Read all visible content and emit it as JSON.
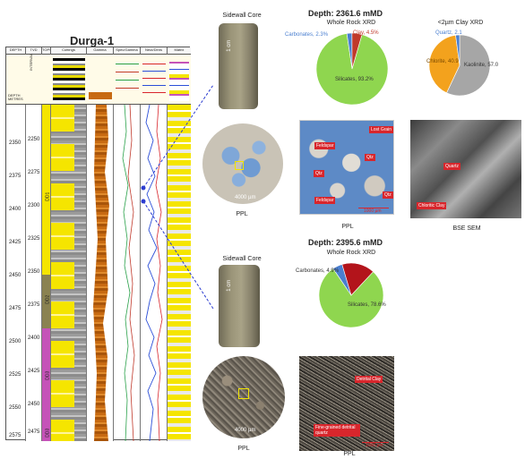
{
  "log": {
    "title": "Durga-1",
    "headers": {
      "depth": "DEPTH",
      "tvd": "TVD",
      "tops": "TOPS",
      "cuttings": "Cuttings",
      "gamma": "Gamma",
      "spectral": "Spec/Gamma",
      "neutron": "Neut/Dens",
      "matrix": "Matrix"
    },
    "depth_unit": "DEPTH METRES",
    "interval_label": "INTERVAL",
    "tvd_ticks": [
      "2250",
      "2275",
      "2300",
      "2325",
      "2350",
      "2375",
      "2400",
      "2425",
      "2450",
      "2475"
    ],
    "md_ticks": [
      "2350",
      "2375",
      "2400",
      "2425",
      "2450",
      "2475",
      "2500",
      "2525",
      "2550",
      "2575"
    ],
    "zones": [
      "DD1",
      "DD2",
      "DD3",
      "DD3"
    ],
    "colors": {
      "yellow": "#f5e500",
      "olive": "#8a8251",
      "magenta": "#c553b8",
      "orange": "#c76a12",
      "blue": "#2b4ed8"
    }
  },
  "sample1": {
    "depth": "Depth: 2361.6 mMD",
    "core_label": "Sidewall Core",
    "core_scale": "1 cm",
    "ppl_scale": "4000 µm",
    "ppl_caption": "PPL",
    "xrd_title": "Whole Rock XRD",
    "xrd": [
      {
        "label": "Silicates, 93.2%",
        "value": 93.2,
        "color": "#8fd64f"
      },
      {
        "label": "Carbonates, 2.3%",
        "value": 2.3,
        "color": "#4a7fd0"
      },
      {
        "label": "Clay, 4.5%",
        "value": 4.5,
        "color": "#c0392b"
      }
    ],
    "clay_title": "<2µm Clay XRD",
    "clay": [
      {
        "label": "Kaolinite, 57.0",
        "value": 57.0,
        "color": "#a6a6a6"
      },
      {
        "label": "Chlorite, 40.9",
        "value": 40.9,
        "color": "#f3a21d"
      },
      {
        "label": "Quartz, 2.1",
        "value": 2.1,
        "color": "#4a7fd0"
      }
    ],
    "thin_labels": [
      "Lost Grain",
      "Feldspar",
      "Qtz",
      "Qtz",
      "Qtz",
      "Feldspar"
    ],
    "thin_scale": "1000 µm",
    "thin_caption": "PPL",
    "sem_labels": [
      "Quartz",
      "Chloritic Clay"
    ],
    "sem_caption": "BSE SEM"
  },
  "sample2": {
    "depth": "Depth: 2395.6 mMD",
    "core_label": "Sidewall Core",
    "core_scale": "1 cm",
    "ppl_scale": "4000 µm",
    "ppl_caption": "PPL",
    "xrd_title": "Whole Rock XRD",
    "xrd": [
      {
        "label": "Silicates, 78.6%",
        "value": 78.6,
        "color": "#8fd64f"
      },
      {
        "label": "Carbonates, 4.9%",
        "value": 4.9,
        "color": "#4a7fd0"
      },
      {
        "label": "Clay",
        "value": 16.5,
        "color": "#b3141b"
      }
    ],
    "thin_labels": [
      "Detrital Clay",
      "Fine-grained detrital quartz"
    ],
    "thin_scale": "1000 µm",
    "thin_caption": "PPL"
  }
}
